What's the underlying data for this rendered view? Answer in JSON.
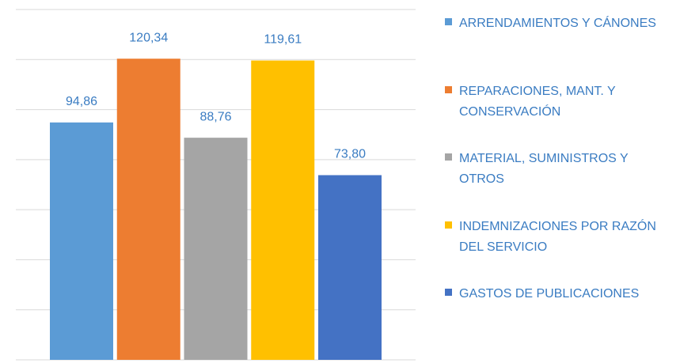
{
  "chart_data": {
    "type": "bar",
    "categories": [
      "ARRENDAMIENTOS Y CÁNONES",
      "REPARACIONES, MANT. Y CONSERVACIÓN",
      "MATERIAL, SUMINISTROS Y OTROS",
      "INDEMNIZACIONES POR RAZÓN DEL SERVICIO",
      "GASTOS DE PUBLICACIONES"
    ],
    "values": [
      94.86,
      120.34,
      88.76,
      119.61,
      73.8
    ],
    "value_labels": [
      "94,86",
      "120,34",
      "88,76",
      "119,61",
      "73,80"
    ],
    "colors": [
      "#5b9bd5",
      "#ed7d31",
      "#a5a5a5",
      "#ffc000",
      "#4472c4"
    ],
    "ylim": [
      0,
      140
    ],
    "yticks": [
      0,
      20,
      40,
      60,
      80,
      100,
      120,
      140
    ],
    "grid": true,
    "legend": "right"
  }
}
